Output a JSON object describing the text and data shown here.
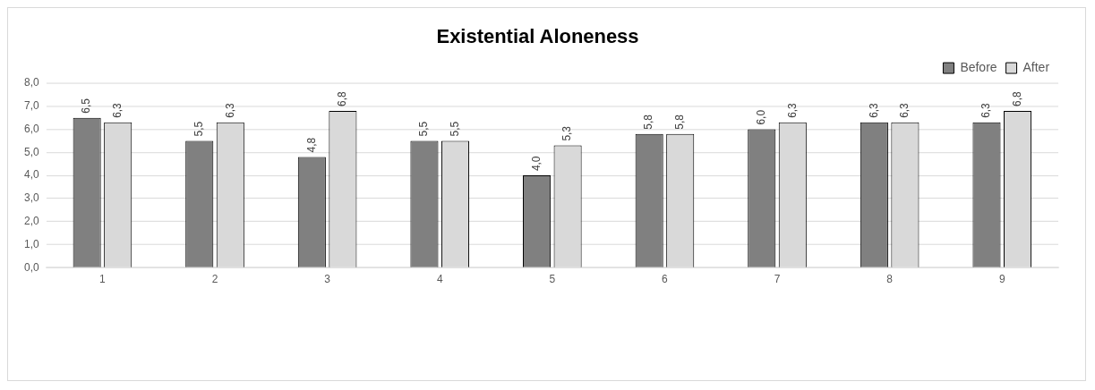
{
  "chart_data": {
    "type": "bar",
    "title": "Existential Aloneness",
    "categories": [
      "1",
      "2",
      "3",
      "4",
      "5",
      "6",
      "7",
      "8",
      "9"
    ],
    "series": [
      {
        "name": "Before",
        "color": "#808080",
        "values": [
          6.5,
          5.5,
          4.8,
          5.5,
          4.0,
          5.8,
          6.0,
          6.3,
          6.3
        ],
        "value_labels": [
          "6,5",
          "5,5",
          "4,8",
          "5,5",
          "4,0",
          "5,8",
          "6,0",
          "6,3",
          "6,3"
        ]
      },
      {
        "name": "After",
        "color": "#d9d9d9",
        "values": [
          6.3,
          6.3,
          6.8,
          5.5,
          5.3,
          5.8,
          6.3,
          6.3,
          6.8
        ],
        "value_labels": [
          "6,3",
          "6,3",
          "6,8",
          "5,5",
          "5,3",
          "5,8",
          "6,3",
          "6,3",
          "6,8"
        ]
      }
    ],
    "ylim": [
      0,
      8
    ],
    "yticks": [
      {
        "value": 0,
        "label": "0,0"
      },
      {
        "value": 1,
        "label": "1,0"
      },
      {
        "value": 2,
        "label": "2,0"
      },
      {
        "value": 3,
        "label": "3,0"
      },
      {
        "value": 4,
        "label": "4,0"
      },
      {
        "value": 5,
        "label": "5,0"
      },
      {
        "value": 6,
        "label": "6,0"
      },
      {
        "value": 7,
        "label": "7,0"
      },
      {
        "value": 8,
        "label": "8,0"
      }
    ],
    "grid": "y",
    "legend": "top right"
  }
}
